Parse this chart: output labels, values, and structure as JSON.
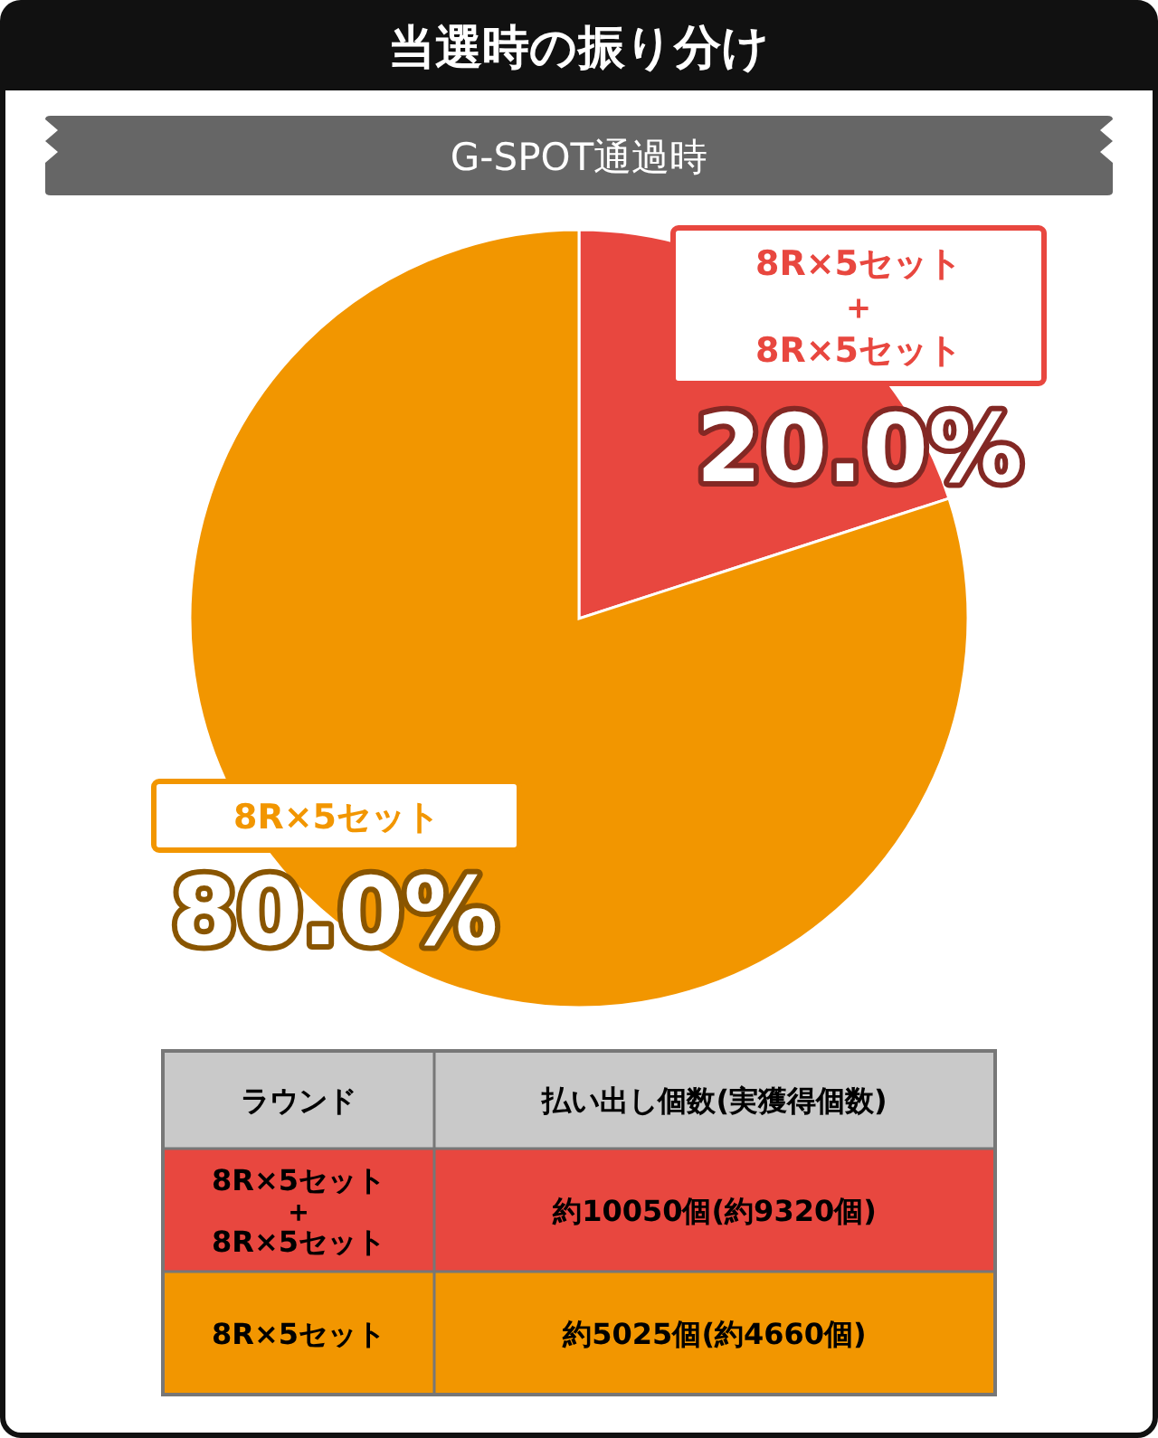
{
  "chart_data": {
    "type": "pie",
    "title": "当選時の振り分け",
    "subtitle": "G-SPOT通過時",
    "categories": [
      "8R×5セット＋8R×5セット",
      "8R×5セット"
    ],
    "values": [
      20.0,
      80.0
    ],
    "colors": [
      "#e8473f",
      "#f29600"
    ],
    "value_labels": [
      "20.0%",
      "80.0%"
    ],
    "annotations": [
      "ラウンド",
      "払い出し個数(実獲得個数)",
      "約10050個(約9320個)",
      "約5025個(約4660個)"
    ]
  }
}
